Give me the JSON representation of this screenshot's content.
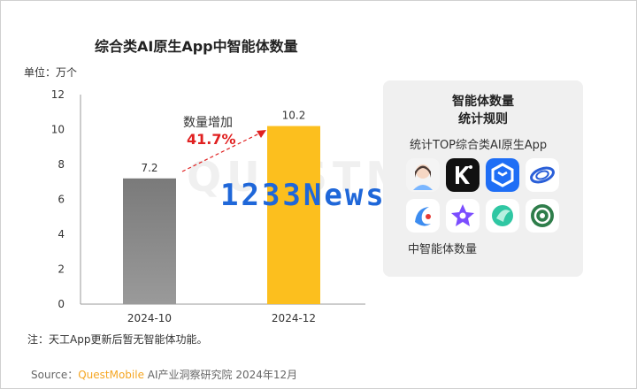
{
  "title": "综合类AI原生App中智能体数量",
  "unit_label": "单位：万个",
  "chart_data": {
    "type": "bar",
    "categories": [
      "2024-10",
      "2024-12"
    ],
    "values": [
      7.2,
      10.2
    ],
    "value_labels": [
      "7.2",
      "10.2"
    ],
    "bar_colors": [
      "#8a8a8a",
      "#fcbf1e"
    ],
    "ylim": [
      0,
      12
    ],
    "yticks": [
      0,
      2,
      4,
      6,
      8,
      10,
      12
    ],
    "ytick_labels": [
      "0",
      "2",
      "4",
      "6",
      "8",
      "10",
      "12"
    ],
    "annotation": {
      "label": "数量增加",
      "value": "41.7%",
      "color": "#e02020"
    }
  },
  "note": "注：天工App更新后暂无智能体功能。",
  "source": {
    "prefix": "Source：",
    "brand": "QuestMobile",
    "rest": " AI产业洞察研究院 2024年12月"
  },
  "panel": {
    "title_line1": "智能体数量",
    "title_line2": "统计规则",
    "subtitle": "统计TOP综合类AI原生App",
    "footer": "中智能体数量",
    "icons": [
      "avatar-app-icon",
      "k-letter-app-icon",
      "cube-app-icon",
      "orbit-app-icon",
      "wave-app-icon",
      "star-app-icon",
      "leaf-app-icon",
      "spiral-app-icon"
    ]
  },
  "watermark": "1233News",
  "background_watermark": "QUESTMOBILE"
}
